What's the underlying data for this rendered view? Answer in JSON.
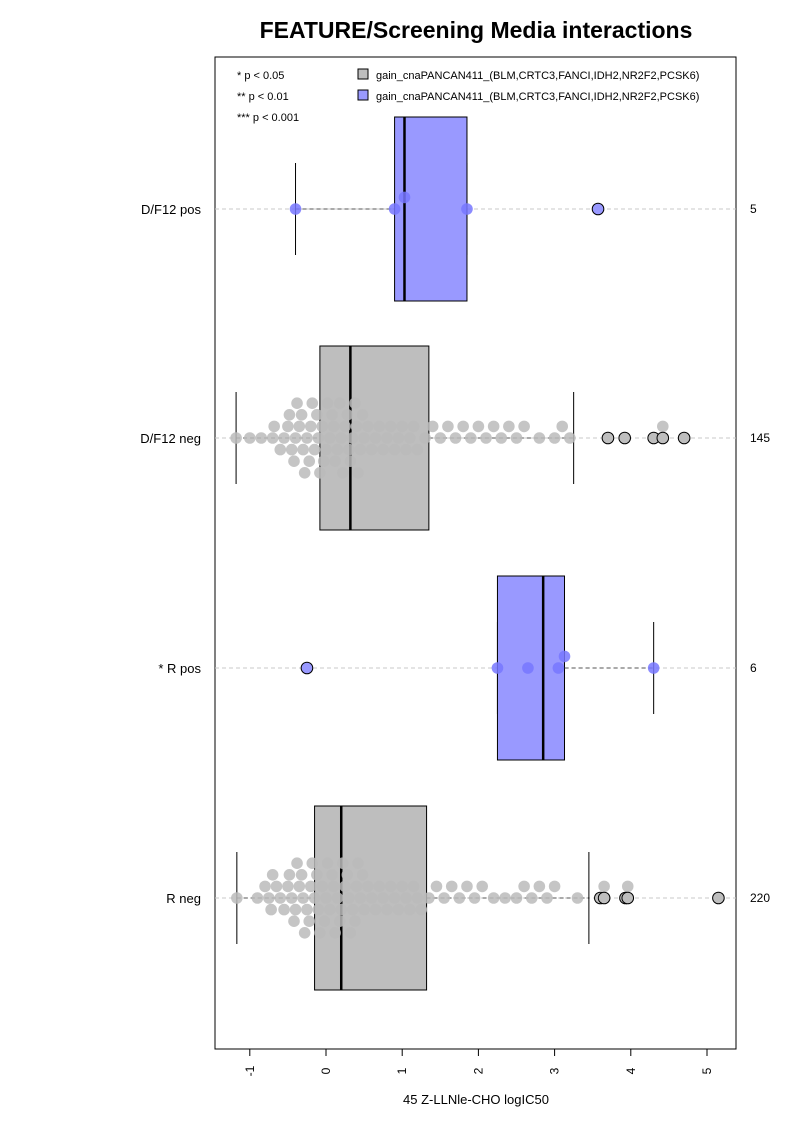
{
  "chart_data": {
    "type": "boxplot",
    "title": "FEATURE/Screening Media interactions",
    "xlabel": "45 Z-LLNle-CHO logIC50",
    "xlim": [
      -1.4,
      5.4
    ],
    "x_ticks": [
      -1,
      0,
      1,
      2,
      3,
      4,
      5
    ],
    "grid": "horizontal dashed lines at each group",
    "legend_position": "top",
    "significance_legend": [
      "* p < 0.05",
      "** p < 0.01",
      "*** p < 0.001"
    ],
    "legend": [
      {
        "label": "gain_cnaPANCAN411_(BLM,CRTC3,FANCI,IDH2,NR2F2,PCSK6)",
        "color": "#bebebe"
      },
      {
        "label": "gain_cnaPANCAN411_(BLM,CRTC3,FANCI,IDH2,NR2F2,PCSK6)",
        "color": "#9999ff"
      }
    ],
    "groups": [
      {
        "label": "D/F12 pos",
        "count": "5",
        "color": "#9999ff",
        "point_color": "#7777ff",
        "whisker_low": -0.4,
        "q1": 0.9,
        "median": 1.03,
        "q3": 1.85,
        "whisker_high": 1.85,
        "outliers": [
          3.57
        ],
        "points": [
          -0.4,
          0.9,
          1.03,
          1.85,
          3.57
        ]
      },
      {
        "label": "D/F12 neg",
        "count": "145",
        "color": "#bebebe",
        "point_color": "#bbbbbb",
        "whisker_low": -1.18,
        "q1": -0.08,
        "median": 0.32,
        "q3": 1.35,
        "whisker_high": 3.25,
        "outliers": [
          3.7,
          3.92,
          4.3,
          4.42,
          4.7
        ],
        "points": [
          -1.18,
          -1.0,
          -0.85,
          -0.7,
          -0.68,
          -0.6,
          -0.55,
          -0.5,
          -0.48,
          -0.45,
          -0.42,
          -0.4,
          -0.38,
          -0.35,
          -0.32,
          -0.3,
          -0.28,
          -0.25,
          -0.22,
          -0.2,
          -0.18,
          -0.15,
          -0.12,
          -0.1,
          -0.08,
          -0.05,
          -0.03,
          0.0,
          0.02,
          0.05,
          0.08,
          0.1,
          0.12,
          0.15,
          0.18,
          0.2,
          0.22,
          0.25,
          0.28,
          0.3,
          0.32,
          0.35,
          0.38,
          0.4,
          0.42,
          0.45,
          0.48,
          0.5,
          0.55,
          0.6,
          0.65,
          0.7,
          0.75,
          0.8,
          0.85,
          0.9,
          0.95,
          1.0,
          1.05,
          1.1,
          1.15,
          1.2,
          1.3,
          1.4,
          1.5,
          1.6,
          1.7,
          1.8,
          1.9,
          2.0,
          2.1,
          2.2,
          2.3,
          2.4,
          2.5,
          2.6,
          2.8,
          3.0,
          3.1,
          3.2,
          3.7,
          3.92,
          4.3,
          4.42,
          4.7
        ]
      },
      {
        "label": "* R pos",
        "count": "6",
        "color": "#9999ff",
        "point_color": "#7777ff",
        "whisker_low": 2.25,
        "q1": 2.25,
        "median": 2.85,
        "q3": 3.13,
        "whisker_high": 4.3,
        "outliers": [
          -0.25
        ],
        "points": [
          -0.25,
          2.25,
          2.65,
          3.05,
          3.13,
          4.3
        ]
      },
      {
        "label": "R neg",
        "count": "220",
        "color": "#bebebe",
        "point_color": "#bbbbbb",
        "whisker_low": -1.17,
        "q1": -0.15,
        "median": 0.2,
        "q3": 1.32,
        "whisker_high": 3.45,
        "outliers": [
          3.6,
          3.65,
          3.93,
          3.96,
          5.15
        ],
        "points": [
          -1.17,
          -0.9,
          -0.8,
          -0.75,
          -0.72,
          -0.7,
          -0.65,
          -0.6,
          -0.55,
          -0.5,
          -0.48,
          -0.45,
          -0.42,
          -0.4,
          -0.38,
          -0.35,
          -0.32,
          -0.3,
          -0.28,
          -0.25,
          -0.22,
          -0.2,
          -0.18,
          -0.15,
          -0.12,
          -0.1,
          -0.08,
          -0.05,
          -0.02,
          0.0,
          0.02,
          0.05,
          0.08,
          0.1,
          0.12,
          0.15,
          0.18,
          0.2,
          0.22,
          0.25,
          0.28,
          0.3,
          0.32,
          0.35,
          0.38,
          0.4,
          0.42,
          0.45,
          0.48,
          0.5,
          0.55,
          0.6,
          0.65,
          0.7,
          0.75,
          0.8,
          0.85,
          0.9,
          0.95,
          1.0,
          1.05,
          1.1,
          1.15,
          1.2,
          1.25,
          1.35,
          1.45,
          1.55,
          1.65,
          1.75,
          1.85,
          1.95,
          2.05,
          2.2,
          2.35,
          2.5,
          2.6,
          2.7,
          2.8,
          2.9,
          3.0,
          3.3,
          3.6,
          3.65,
          3.93,
          3.96,
          5.15
        ]
      }
    ]
  }
}
